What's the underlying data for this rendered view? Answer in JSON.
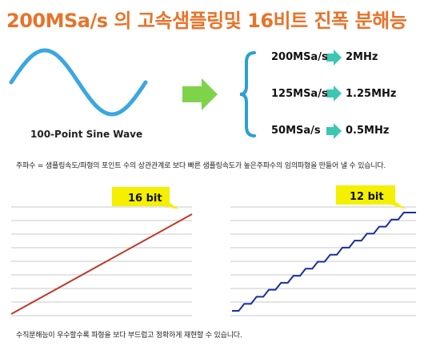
{
  "title": "200MSa/s 의 고속샘플링및 16비트 진폭 분해능",
  "sine_label": "100-Point Sine Wave",
  "rates": [
    {
      "rate": "200MSa/s",
      "freq": "2MHz"
    },
    {
      "rate": "125MSa/s",
      "freq": "1.25MHz"
    },
    {
      "rate": "50MSa/s",
      "freq": "0.5MHz"
    }
  ],
  "note_top": "주파수 = 샘플링속도/파형의 포인트 수의 상관관계로 보다 빠른 샘플링속도가 높은주파수의 임의파형을 만들어 낼 수 있습니다.",
  "note_bottom": "수직분해능이 우수할수록 파형을 보다 부드럽고 정확하게 재현할 수 있습니다.",
  "panels": [
    {
      "badge": "16 bit",
      "steps": 0,
      "line_color": "#c0392b"
    },
    {
      "badge": "12 bit",
      "steps": 14,
      "line_color": "#1a2fa0"
    }
  ],
  "colors": {
    "title": "#e8732a",
    "sine": "#3aa7e0",
    "arrow_big": "#7fd34a",
    "arrow_small": "#3ec6b4",
    "badge_fill": "#f4f000",
    "bracket": "#2aa0d8"
  }
}
